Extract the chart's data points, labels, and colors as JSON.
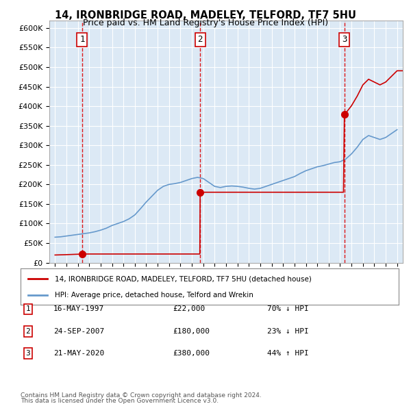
{
  "title1": "14, IRONBRIDGE ROAD, MADELEY, TELFORD, TF7 5HU",
  "title2": "Price paid vs. HM Land Registry's House Price Index (HPI)",
  "xlabel": "",
  "ylabel": "",
  "background_color": "#dce9f5",
  "plot_bg": "#dce9f5",
  "grid_color": "#ffffff",
  "sale_dates": [
    1997.37,
    2007.73,
    2020.38
  ],
  "sale_prices": [
    22000,
    180000,
    380000
  ],
  "sale_labels": [
    "1",
    "2",
    "3"
  ],
  "legend_line1": "14, IRONBRIDGE ROAD, MADELEY, TELFORD, TF7 5HU (detached house)",
  "legend_line2": "HPI: Average price, detached house, Telford and Wrekin",
  "table_data": [
    [
      "1",
      "16-MAY-1997",
      "£22,000",
      "70% ↓ HPI"
    ],
    [
      "2",
      "24-SEP-2007",
      "£180,000",
      "23% ↓ HPI"
    ],
    [
      "3",
      "21-MAY-2020",
      "£380,000",
      "44% ↑ HPI"
    ]
  ],
  "footnote1": "Contains HM Land Registry data © Crown copyright and database right 2024.",
  "footnote2": "This data is licensed under the Open Government Licence v3.0.",
  "red_color": "#cc0000",
  "blue_color": "#6699cc",
  "dashed_red": "#dd0000",
  "ylim": [
    0,
    620000
  ],
  "xlim_min": 1994.5,
  "xlim_max": 2025.5
}
